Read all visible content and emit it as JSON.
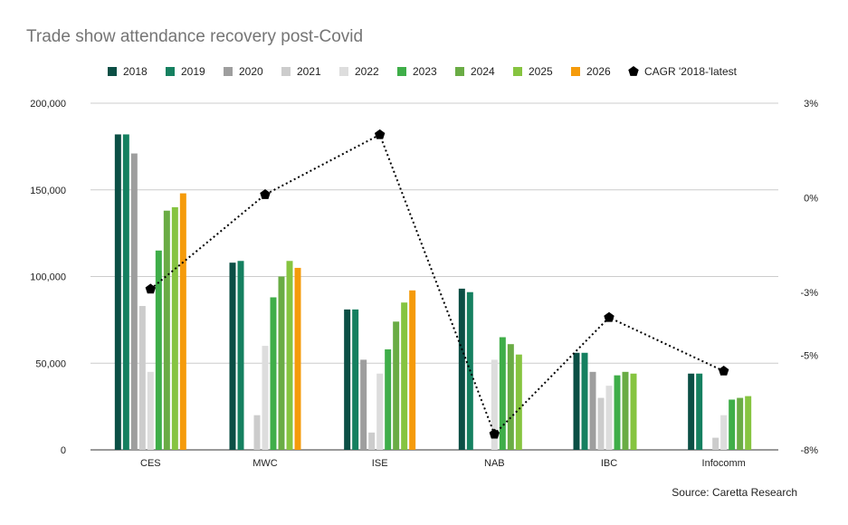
{
  "chart_data": {
    "type": "bar",
    "title": "Trade show attendance recovery post-Covid",
    "source": "Source: Caretta Research",
    "categories": [
      "CES",
      "MWC",
      "ISE",
      "NAB",
      "IBC",
      "Infocomm"
    ],
    "y_left": {
      "min": 0,
      "max": 200000,
      "ticks": [
        0,
        50000,
        100000,
        150000,
        200000
      ],
      "tick_labels": [
        "0",
        "50,000",
        "100,000",
        "150,000",
        "200,000"
      ]
    },
    "y_right": {
      "min": -8,
      "max": 3,
      "ticks": [
        -8,
        -5,
        -3,
        0,
        3
      ],
      "tick_labels": [
        "-8%",
        "-5%",
        "-3%",
        "0%",
        "3%"
      ]
    },
    "series": [
      {
        "name": "2018",
        "color": "#0b4f45",
        "values": [
          182000,
          108000,
          81000,
          93000,
          56000,
          44000
        ]
      },
      {
        "name": "2019",
        "color": "#158060",
        "values": [
          182000,
          109000,
          81000,
          91000,
          56000,
          44000
        ]
      },
      {
        "name": "2020",
        "color": "#9e9e9e",
        "values": [
          171000,
          null,
          52000,
          null,
          45000,
          null
        ]
      },
      {
        "name": "2021",
        "color": "#cccccc",
        "values": [
          83000,
          20000,
          10000,
          null,
          30000,
          7000
        ]
      },
      {
        "name": "2022",
        "color": "#dddddd",
        "values": [
          45000,
          60000,
          44000,
          52000,
          37000,
          20000
        ]
      },
      {
        "name": "2023",
        "color": "#3fae49",
        "values": [
          115000,
          88000,
          58000,
          65000,
          43000,
          29000
        ]
      },
      {
        "name": "2024",
        "color": "#6aac45",
        "values": [
          138000,
          100000,
          74000,
          61000,
          45000,
          30000
        ]
      },
      {
        "name": "2025",
        "color": "#86c440",
        "values": [
          140000,
          109000,
          85000,
          55000,
          44000,
          31000
        ]
      },
      {
        "name": "2026",
        "color": "#f59b0b",
        "values": [
          148000,
          105000,
          92000,
          null,
          null,
          null
        ]
      }
    ],
    "line_series": {
      "name": "CAGR '2018-'latest",
      "color": "#000000",
      "values": [
        -2.9,
        0.1,
        2.0,
        -7.5,
        -3.8,
        -5.5
      ]
    },
    "legend": [
      "2018",
      "2019",
      "2020",
      "2021",
      "2022",
      "2023",
      "2024",
      "2025",
      "2026",
      "CAGR '2018-'latest"
    ]
  }
}
